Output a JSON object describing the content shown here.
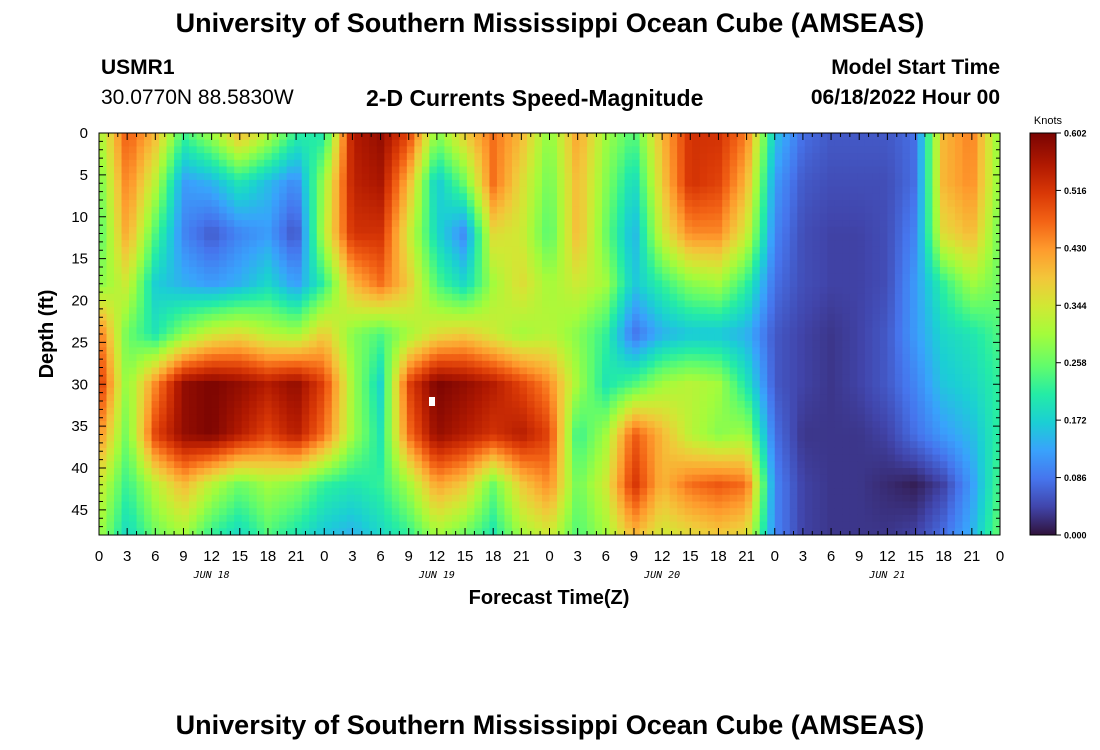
{
  "page": {
    "title": "University of Southern Mississippi Ocean Cube (AMSEAS)",
    "footer_title": "University of Southern Mississippi Ocean Cube (AMSEAS)",
    "station_id": "USMR1",
    "coordinates": "30.0770N  88.5830W",
    "chart_title": "2-D Currents Speed-Magnitude",
    "model_start_label": "Model Start Time",
    "model_start_value": "06/18/2022 Hour 00"
  },
  "chart_data": {
    "type": "heatmap",
    "title": "2-D Currents Speed-Magnitude",
    "xlabel": "Forecast Time(Z)",
    "ylabel": "Depth (ft)",
    "x_tick_labels": [
      "0",
      "3",
      "6",
      "9",
      "12",
      "15",
      "18",
      "21",
      "0",
      "3",
      "6",
      "9",
      "12",
      "15",
      "18",
      "21",
      "0",
      "3",
      "6",
      "9",
      "12",
      "15",
      "18",
      "21",
      "0",
      "3",
      "6",
      "9",
      "12",
      "15",
      "18",
      "21",
      "0"
    ],
    "x_range_hours": [
      0,
      96
    ],
    "date_labels": [
      "JUN 18",
      "JUN 19",
      "JUN 20",
      "JUN 21"
    ],
    "y_ticks": [
      0,
      5,
      10,
      15,
      20,
      25,
      30,
      35,
      40,
      45
    ],
    "ylim": [
      0,
      48
    ],
    "y_inverted": true,
    "colorbar": {
      "unit": "Knots",
      "ticks": [
        "0.602",
        "0.516",
        "0.430",
        "0.344",
        "0.258",
        "0.172",
        "0.086",
        "0.000"
      ],
      "min": 0.0,
      "max": 0.602
    },
    "depths_ft": [
      0,
      6,
      12,
      18,
      24,
      30,
      36,
      42,
      48
    ],
    "hours": [
      0,
      3,
      6,
      9,
      12,
      15,
      18,
      21,
      24,
      27,
      30,
      33,
      36,
      39,
      42,
      45,
      48,
      51,
      54,
      57,
      60,
      63,
      66,
      69,
      72,
      75,
      78,
      81,
      84,
      87,
      90,
      93,
      96
    ],
    "speed_knots": [
      [
        0.3,
        0.48,
        0.4,
        0.23,
        0.3,
        0.4,
        0.32,
        0.22,
        0.2,
        0.55,
        0.58,
        0.5,
        0.28,
        0.38,
        0.46,
        0.4,
        0.28,
        0.42,
        0.3,
        0.24,
        0.4,
        0.52,
        0.52,
        0.45,
        0.16,
        0.08,
        0.06,
        0.06,
        0.06,
        0.08,
        0.4,
        0.45,
        0.28
      ],
      [
        0.26,
        0.45,
        0.32,
        0.12,
        0.14,
        0.2,
        0.15,
        0.1,
        0.3,
        0.54,
        0.56,
        0.4,
        0.16,
        0.26,
        0.46,
        0.36,
        0.26,
        0.4,
        0.28,
        0.18,
        0.38,
        0.52,
        0.5,
        0.4,
        0.12,
        0.06,
        0.05,
        0.05,
        0.05,
        0.08,
        0.4,
        0.44,
        0.28
      ],
      [
        0.24,
        0.42,
        0.24,
        0.1,
        0.06,
        0.1,
        0.12,
        0.05,
        0.32,
        0.52,
        0.52,
        0.34,
        0.18,
        0.1,
        0.36,
        0.34,
        0.24,
        0.4,
        0.26,
        0.14,
        0.34,
        0.44,
        0.44,
        0.34,
        0.1,
        0.05,
        0.04,
        0.04,
        0.05,
        0.1,
        0.36,
        0.4,
        0.26
      ],
      [
        0.28,
        0.34,
        0.17,
        0.14,
        0.12,
        0.14,
        0.18,
        0.12,
        0.22,
        0.4,
        0.46,
        0.38,
        0.24,
        0.18,
        0.3,
        0.36,
        0.3,
        0.34,
        0.3,
        0.16,
        0.22,
        0.28,
        0.3,
        0.22,
        0.08,
        0.05,
        0.04,
        0.04,
        0.05,
        0.12,
        0.22,
        0.3,
        0.26
      ],
      [
        0.46,
        0.26,
        0.2,
        0.28,
        0.34,
        0.36,
        0.32,
        0.3,
        0.38,
        0.28,
        0.24,
        0.3,
        0.36,
        0.38,
        0.34,
        0.3,
        0.32,
        0.28,
        0.22,
        0.08,
        0.14,
        0.16,
        0.16,
        0.14,
        0.06,
        0.04,
        0.03,
        0.04,
        0.06,
        0.12,
        0.18,
        0.2,
        0.24
      ],
      [
        0.52,
        0.28,
        0.44,
        0.58,
        0.6,
        0.58,
        0.55,
        0.58,
        0.5,
        0.3,
        0.18,
        0.5,
        0.6,
        0.58,
        0.55,
        0.5,
        0.44,
        0.3,
        0.2,
        0.24,
        0.3,
        0.32,
        0.3,
        0.2,
        0.06,
        0.04,
        0.03,
        0.04,
        0.06,
        0.1,
        0.16,
        0.18,
        0.22
      ],
      [
        0.44,
        0.26,
        0.5,
        0.58,
        0.6,
        0.55,
        0.5,
        0.55,
        0.46,
        0.3,
        0.2,
        0.46,
        0.58,
        0.55,
        0.52,
        0.55,
        0.5,
        0.22,
        0.3,
        0.48,
        0.4,
        0.32,
        0.28,
        0.3,
        0.08,
        0.03,
        0.03,
        0.03,
        0.04,
        0.08,
        0.12,
        0.15,
        0.22
      ],
      [
        0.34,
        0.22,
        0.32,
        0.4,
        0.32,
        0.26,
        0.3,
        0.28,
        0.22,
        0.2,
        0.22,
        0.3,
        0.42,
        0.38,
        0.26,
        0.38,
        0.44,
        0.26,
        0.34,
        0.52,
        0.4,
        0.46,
        0.48,
        0.46,
        0.1,
        0.04,
        0.03,
        0.03,
        0.02,
        0.01,
        0.04,
        0.12,
        0.24
      ],
      [
        0.3,
        0.18,
        0.26,
        0.3,
        0.22,
        0.18,
        0.24,
        0.2,
        0.16,
        0.14,
        0.18,
        0.22,
        0.3,
        0.26,
        0.2,
        0.3,
        0.34,
        0.24,
        0.3,
        0.4,
        0.34,
        0.36,
        0.38,
        0.36,
        0.1,
        0.04,
        0.03,
        0.03,
        0.03,
        0.04,
        0.08,
        0.14,
        0.26
      ]
    ]
  }
}
